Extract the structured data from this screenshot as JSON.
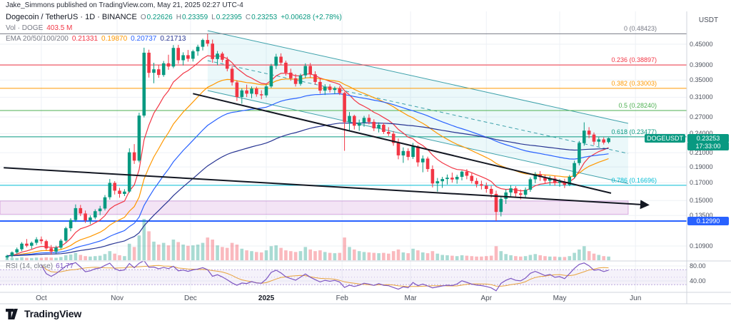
{
  "attribution": "Jake_Simmons published on TradingView.com, May 21, 2025 02:27 UTC-4",
  "header": {
    "symbol_line": "Dogecoin / TetherUS · 1D · BINANCE",
    "ohlc": {
      "o_label": "O",
      "o": "0.22626",
      "h_label": "H",
      "h": "0.23359",
      "l_label": "L",
      "l": "0.22395",
      "c_label": "C",
      "c": "0.23253",
      "change": "+0.00628 (+2.78%)"
    },
    "volume_row": {
      "label": "Vol · DOGE",
      "value": "403.5 M"
    },
    "ema_row": {
      "label": "EMA 20/50/100/200",
      "values": [
        "0.21331",
        "0.19870",
        "0.20737",
        "0.21713"
      ]
    }
  },
  "rsi_legend": {
    "label": "RSI (14, close)",
    "value": "61.77"
  },
  "axis": {
    "currency_label": "USDT",
    "last_price": "0.23253",
    "countdown": "17:33:00",
    "symbol_badge": "DOGEUSDT",
    "level_badge": "0.12990"
  },
  "footer": {
    "logo_text": "TradingView"
  },
  "colors": {
    "up": "#089981",
    "down": "#f23645",
    "grid": "#eef1f6",
    "separator": "#d1d4dc",
    "axis_text": "#4a4f5a",
    "trendline": "#131722"
  },
  "chart_data": {
    "type": "candlestick",
    "symbol": "DOGEUSDT",
    "exchange": "BINANCE",
    "timeframe": "1D",
    "scale": "log",
    "bar_span_days": 2,
    "y_axis": {
      "ticks": [
        0.45,
        0.39,
        0.35,
        0.31,
        0.27,
        0.24,
        0.21,
        0.19,
        0.17,
        0.15,
        0.135,
        0.109
      ]
    },
    "x_axis": {
      "months": [
        {
          "label": "Oct",
          "index": 7
        },
        {
          "label": "Nov",
          "index": 22.5
        },
        {
          "label": "Dec",
          "index": 37.5
        },
        {
          "label": "2025",
          "index": 53,
          "major": true
        },
        {
          "label": "Feb",
          "index": 68.5
        },
        {
          "label": "Mar",
          "index": 82.5
        },
        {
          "label": "Apr",
          "index": 98
        },
        {
          "label": "May",
          "index": 113
        },
        {
          "label": "Jun",
          "index": 128.5
        }
      ]
    },
    "candles": [
      [
        0.1005,
        0.1025,
        0.0992,
        0.1018
      ],
      [
        0.1018,
        0.105,
        0.1005,
        0.1042
      ],
      [
        0.1042,
        0.1078,
        0.103,
        0.1065
      ],
      [
        0.1065,
        0.112,
        0.1052,
        0.1108
      ],
      [
        0.1108,
        0.1145,
        0.108,
        0.1092
      ],
      [
        0.1092,
        0.1125,
        0.1068,
        0.1115
      ],
      [
        0.1115,
        0.116,
        0.1098,
        0.1142
      ],
      [
        0.1142,
        0.1165,
        0.1105,
        0.1128
      ],
      [
        0.1128,
        0.114,
        0.1058,
        0.1072
      ],
      [
        0.1072,
        0.1098,
        0.1025,
        0.1048
      ],
      [
        0.1048,
        0.1092,
        0.1032,
        0.1078
      ],
      [
        0.1078,
        0.1145,
        0.1065,
        0.1132
      ],
      [
        0.1132,
        0.1248,
        0.112,
        0.1235
      ],
      [
        0.1235,
        0.1325,
        0.121,
        0.1308
      ],
      [
        0.1308,
        0.146,
        0.129,
        0.1422
      ],
      [
        0.1422,
        0.1455,
        0.1345,
        0.137
      ],
      [
        0.137,
        0.1398,
        0.1282,
        0.1305
      ],
      [
        0.1305,
        0.1352,
        0.127,
        0.1332
      ],
      [
        0.1332,
        0.141,
        0.1315,
        0.1392
      ],
      [
        0.1392,
        0.1445,
        0.1355,
        0.1418
      ],
      [
        0.1418,
        0.156,
        0.14,
        0.1535
      ],
      [
        0.1535,
        0.1745,
        0.151,
        0.1698
      ],
      [
        0.1698,
        0.172,
        0.1565,
        0.1608
      ],
      [
        0.1608,
        0.164,
        0.153,
        0.1572
      ],
      [
        0.1572,
        0.1625,
        0.1548,
        0.1598
      ],
      [
        0.1598,
        0.2165,
        0.1585,
        0.2105
      ],
      [
        0.2105,
        0.223,
        0.194,
        0.1985
      ],
      [
        0.1985,
        0.278,
        0.1962,
        0.2725
      ],
      [
        0.2725,
        0.439,
        0.269,
        0.424
      ],
      [
        0.424,
        0.433,
        0.356,
        0.368
      ],
      [
        0.368,
        0.395,
        0.342,
        0.3772
      ],
      [
        0.3772,
        0.389,
        0.3555,
        0.3625
      ],
      [
        0.3625,
        0.4,
        0.358,
        0.3935
      ],
      [
        0.3935,
        0.418,
        0.376,
        0.3848
      ],
      [
        0.3848,
        0.4472,
        0.38,
        0.4385
      ],
      [
        0.4385,
        0.448,
        0.392,
        0.402
      ],
      [
        0.402,
        0.425,
        0.3875,
        0.4165
      ],
      [
        0.4165,
        0.432,
        0.398,
        0.4062
      ],
      [
        0.4062,
        0.433,
        0.3985,
        0.4282
      ],
      [
        0.4282,
        0.4485,
        0.415,
        0.442
      ],
      [
        0.442,
        0.468,
        0.4305,
        0.4635
      ],
      [
        0.4635,
        0.48423,
        0.443,
        0.4518
      ],
      [
        0.4518,
        0.465,
        0.395,
        0.4055
      ],
      [
        0.4055,
        0.429,
        0.388,
        0.4212
      ],
      [
        0.4212,
        0.4265,
        0.396,
        0.4035
      ],
      [
        0.4035,
        0.412,
        0.372,
        0.3788
      ],
      [
        0.3788,
        0.3852,
        0.3365,
        0.3442
      ],
      [
        0.3442,
        0.349,
        0.302,
        0.3105
      ],
      [
        0.3105,
        0.33,
        0.2962,
        0.3252
      ],
      [
        0.3252,
        0.3388,
        0.3105,
        0.3178
      ],
      [
        0.3178,
        0.3345,
        0.308,
        0.3295
      ],
      [
        0.3295,
        0.334,
        0.3112,
        0.3165
      ],
      [
        0.3165,
        0.3255,
        0.3058,
        0.3142
      ],
      [
        0.3142,
        0.339,
        0.3095,
        0.3345
      ],
      [
        0.3345,
        0.392,
        0.331,
        0.3865
      ],
      [
        0.3865,
        0.4205,
        0.378,
        0.4122
      ],
      [
        0.4122,
        0.422,
        0.388,
        0.3952
      ],
      [
        0.3952,
        0.401,
        0.361,
        0.3685
      ],
      [
        0.3685,
        0.379,
        0.348,
        0.3542
      ],
      [
        0.3542,
        0.365,
        0.3342,
        0.3405
      ],
      [
        0.3405,
        0.366,
        0.336,
        0.3615
      ],
      [
        0.3615,
        0.3935,
        0.3545,
        0.3862
      ],
      [
        0.3862,
        0.3945,
        0.3555,
        0.3642
      ],
      [
        0.3642,
        0.372,
        0.3388,
        0.3452
      ],
      [
        0.3452,
        0.3548,
        0.318,
        0.3248
      ],
      [
        0.3248,
        0.3395,
        0.315,
        0.3342
      ],
      [
        0.3342,
        0.3398,
        0.3205,
        0.3262
      ],
      [
        0.3262,
        0.3342,
        0.3168,
        0.3305
      ],
      [
        0.3305,
        0.3352,
        0.315,
        0.3195
      ],
      [
        0.3195,
        0.322,
        0.2128,
        0.2602
      ],
      [
        0.2602,
        0.2795,
        0.2445,
        0.2718
      ],
      [
        0.2718,
        0.2742,
        0.2472,
        0.2538
      ],
      [
        0.2538,
        0.265,
        0.2448,
        0.2595
      ],
      [
        0.2595,
        0.272,
        0.252,
        0.2682
      ],
      [
        0.2682,
        0.2748,
        0.2562,
        0.2608
      ],
      [
        0.2608,
        0.2655,
        0.2445,
        0.2492
      ],
      [
        0.2492,
        0.2598,
        0.242,
        0.2555
      ],
      [
        0.2555,
        0.2588,
        0.2395,
        0.243
      ],
      [
        0.243,
        0.2512,
        0.2362,
        0.2398
      ],
      [
        0.2398,
        0.2445,
        0.2205,
        0.2248
      ],
      [
        0.2248,
        0.232,
        0.2005,
        0.206
      ],
      [
        0.206,
        0.218,
        0.1955,
        0.2125
      ],
      [
        0.2125,
        0.2165,
        0.1992,
        0.2038
      ],
      [
        0.2038,
        0.2248,
        0.201,
        0.2195
      ],
      [
        0.2195,
        0.2215,
        0.1905,
        0.1962
      ],
      [
        0.1962,
        0.206,
        0.183,
        0.2015
      ],
      [
        0.2015,
        0.2042,
        0.1835,
        0.1872
      ],
      [
        0.1872,
        0.192,
        0.1645,
        0.1692
      ],
      [
        0.1692,
        0.1758,
        0.1598,
        0.1718
      ],
      [
        0.1718,
        0.1772,
        0.164,
        0.1745
      ],
      [
        0.1745,
        0.1802,
        0.168,
        0.1762
      ],
      [
        0.1762,
        0.1825,
        0.1702,
        0.174
      ],
      [
        0.174,
        0.1798,
        0.1688,
        0.1772
      ],
      [
        0.1772,
        0.1852,
        0.1728,
        0.1838
      ],
      [
        0.1838,
        0.1872,
        0.1742,
        0.1785
      ],
      [
        0.1785,
        0.182,
        0.1692,
        0.1722
      ],
      [
        0.1722,
        0.1758,
        0.1645,
        0.1682
      ],
      [
        0.1682,
        0.1725,
        0.1622,
        0.1665
      ],
      [
        0.1665,
        0.1702,
        0.1585,
        0.1628
      ],
      [
        0.1628,
        0.1665,
        0.1532,
        0.1572
      ],
      [
        0.1572,
        0.1608,
        0.13,
        0.1385
      ],
      [
        0.1385,
        0.1552,
        0.1342,
        0.1518
      ],
      [
        0.1518,
        0.1625,
        0.1465,
        0.1588
      ],
      [
        0.1588,
        0.1672,
        0.1545,
        0.1635
      ],
      [
        0.1635,
        0.166,
        0.1542,
        0.1578
      ],
      [
        0.1578,
        0.1622,
        0.1512,
        0.1562
      ],
      [
        0.1562,
        0.1645,
        0.1535,
        0.1618
      ],
      [
        0.1618,
        0.1765,
        0.1595,
        0.1742
      ],
      [
        0.1742,
        0.1832,
        0.1695,
        0.1805
      ],
      [
        0.1805,
        0.1845,
        0.1722,
        0.1768
      ],
      [
        0.1768,
        0.1802,
        0.1692,
        0.1725
      ],
      [
        0.1725,
        0.1782,
        0.1668,
        0.1752
      ],
      [
        0.1752,
        0.1785,
        0.1665,
        0.1698
      ],
      [
        0.1698,
        0.1745,
        0.1652,
        0.1712
      ],
      [
        0.1712,
        0.1748,
        0.1638,
        0.1675
      ],
      [
        0.1675,
        0.1795,
        0.166,
        0.1772
      ],
      [
        0.1772,
        0.1985,
        0.1755,
        0.1952
      ],
      [
        0.1952,
        0.228,
        0.192,
        0.2245
      ],
      [
        0.2245,
        0.2598,
        0.2205,
        0.2452
      ],
      [
        0.2452,
        0.2512,
        0.2325,
        0.2385
      ],
      [
        0.2385,
        0.242,
        0.2218,
        0.2268
      ],
      [
        0.2268,
        0.2342,
        0.2195,
        0.2305
      ],
      [
        0.2305,
        0.2338,
        0.2225,
        0.2255
      ],
      [
        0.22626,
        0.23359,
        0.22395,
        0.23253
      ]
    ],
    "volumes": [
      0.5,
      0.6,
      0.55,
      0.7,
      0.6,
      0.55,
      0.65,
      0.6,
      0.7,
      0.65,
      0.6,
      0.8,
      1.2,
      1.4,
      1.8,
      1.3,
      1.0,
      0.9,
      1.0,
      1.1,
      1.5,
      2.2,
      1.6,
      1.2,
      1.0,
      4.0,
      3.2,
      6.0,
      10.0,
      7.0,
      4.5,
      3.8,
      4.2,
      3.6,
      5.0,
      4.4,
      3.8,
      3.5,
      3.6,
      3.8,
      4.2,
      5.5,
      5.0,
      3.6,
      3.2,
      3.0,
      4.2,
      3.8,
      2.8,
      2.4,
      2.2,
      2.0,
      1.9,
      2.4,
      3.4,
      3.6,
      3.0,
      2.4,
      2.2,
      2.0,
      2.2,
      3.2,
      2.6,
      2.2,
      2.4,
      2.0,
      1.8,
      1.7,
      1.8,
      5.5,
      3.2,
      2.6,
      2.2,
      2.0,
      1.9,
      1.8,
      1.7,
      1.8,
      1.6,
      2.2,
      2.6,
      1.9,
      1.7,
      2.8,
      2.4,
      1.9,
      1.7,
      2.2,
      1.6,
      1.3,
      1.2,
      1.1,
      1.0,
      1.2,
      1.1,
      1.0,
      0.9,
      0.9,
      1.0,
      1.1,
      3.4,
      2.2,
      1.5,
      1.2,
      1.0,
      0.9,
      1.0,
      1.3,
      1.5,
      1.2,
      1.0,
      0.9,
      0.9,
      0.8,
      0.8,
      1.0,
      1.8,
      2.6,
      3.4,
      2.2,
      1.6,
      1.3,
      1.0,
      0.9
    ],
    "overlays": {
      "emas": [
        {
          "label": "EMA 20",
          "period_bars": 10,
          "color": "#f23645",
          "value": "0.21331"
        },
        {
          "label": "EMA 50",
          "period_bars": 25,
          "color": "#ff9800",
          "value": "0.19870"
        },
        {
          "label": "EMA 100",
          "period_bars": 50,
          "color": "#2962ff",
          "value": "0.20737"
        },
        {
          "label": "EMA 200",
          "period_bars": 100,
          "color": "#283593",
          "value": "0.21713"
        }
      ],
      "fib_retracement": [
        {
          "label": "0 (0.48423)",
          "ratio": 0,
          "price": 0.48423,
          "color": "#787b86"
        },
        {
          "label": "0.236 (0.38897)",
          "ratio": 0.236,
          "price": 0.38897,
          "color": "#f23645"
        },
        {
          "label": "0.382 (0.33003)",
          "ratio": 0.382,
          "price": 0.33003,
          "color": "#ff9800"
        },
        {
          "label": "0.5 (0.28240)",
          "ratio": 0.5,
          "price": 0.2824,
          "color": "#4caf50"
        },
        {
          "label": "0.618 (0.23477)",
          "ratio": 0.618,
          "price": 0.23477,
          "color": "#089981"
        },
        {
          "label": "0.786 (0.16696)",
          "ratio": 0.786,
          "price": 0.16696,
          "color": "#00bcd4"
        }
      ],
      "trendlines": [
        {
          "x1_index": -0.7,
          "price1": 0.189,
          "x2_index": 131,
          "price2": 0.1455,
          "width": 2,
          "arrow": true
        },
        {
          "x1_index": 38,
          "price1": 0.318,
          "x2_index": 123.5,
          "price2": 0.158,
          "width": 2,
          "arrow": false
        }
      ],
      "channel": {
        "x1_index": 41,
        "price_upper1": 0.495,
        "price_lower1": 0.325,
        "x2_index": 127,
        "price_upper2": 0.258,
        "price_lower2": 0.169,
        "color": "rgba(0,131,143,0.75)",
        "fill": "rgba(0,172,193,0.08)"
      },
      "support_band": {
        "price_top": 0.1495,
        "price_bottom": 0.1362,
        "fill": "rgba(186,104,200,0.18)",
        "stroke": "rgba(156,39,176,0.35)"
      },
      "hline": {
        "price": 0.1299,
        "color": "#2962ff",
        "width": 2,
        "label": "0.12990"
      }
    },
    "rsi": {
      "period_bars": 7,
      "line_color": "#7e57c2",
      "ma_color": "#e8a33d",
      "band": [
        70,
        30
      ],
      "midline": 50,
      "ticks": [
        {
          "value": 80,
          "label": "80.00"
        },
        {
          "value": 40,
          "label": "40.00"
        }
      ],
      "current": "61.77"
    }
  }
}
